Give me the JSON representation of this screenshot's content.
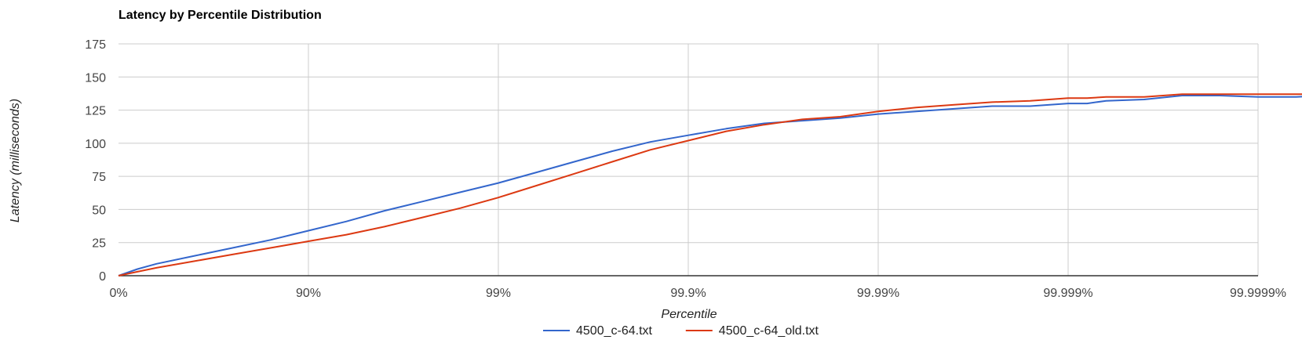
{
  "chart_data": {
    "type": "line",
    "title": "Latency by Percentile Distribution",
    "xlabel": "Percentile",
    "ylabel": "Latency (milliseconds)",
    "x_scale": "log10(1/(1-p))",
    "x_range": [
      0,
      6
    ],
    "ylim": [
      0,
      175
    ],
    "grid": true,
    "legend_position": "bottom",
    "x_ticks": [
      {
        "value": 0,
        "label": "0%"
      },
      {
        "value": 1,
        "label": "90%"
      },
      {
        "value": 2,
        "label": "99%"
      },
      {
        "value": 3,
        "label": "99.9%"
      },
      {
        "value": 4,
        "label": "99.99%"
      },
      {
        "value": 5,
        "label": "99.999%"
      },
      {
        "value": 6,
        "label": "99.9999%"
      }
    ],
    "y_ticks": [
      0,
      25,
      50,
      75,
      100,
      125,
      150,
      175
    ],
    "series": [
      {
        "name": "4500_c-64.txt",
        "color": "#3366cc",
        "points": [
          [
            0,
            0
          ],
          [
            0.1,
            5
          ],
          [
            0.2,
            9
          ],
          [
            0.4,
            15
          ],
          [
            0.6,
            21
          ],
          [
            0.8,
            27
          ],
          [
            1.0,
            34
          ],
          [
            1.2,
            41
          ],
          [
            1.4,
            49
          ],
          [
            1.6,
            56
          ],
          [
            1.8,
            63
          ],
          [
            2.0,
            70
          ],
          [
            2.2,
            78
          ],
          [
            2.4,
            86
          ],
          [
            2.6,
            94
          ],
          [
            2.8,
            101
          ],
          [
            3.0,
            106
          ],
          [
            3.2,
            111
          ],
          [
            3.4,
            115
          ],
          [
            3.6,
            117
          ],
          [
            3.8,
            119
          ],
          [
            4.0,
            122
          ],
          [
            4.2,
            124
          ],
          [
            4.4,
            126
          ],
          [
            4.6,
            128
          ],
          [
            4.8,
            128
          ],
          [
            5.0,
            130
          ],
          [
            5.1,
            130
          ],
          [
            5.2,
            132
          ],
          [
            5.4,
            133
          ],
          [
            5.6,
            136
          ],
          [
            5.8,
            136
          ],
          [
            6.0,
            135
          ],
          [
            6.2,
            135
          ],
          [
            6.4,
            136
          ],
          [
            6.6,
            140
          ]
        ]
      },
      {
        "name": "4500_c-64_old.txt",
        "color": "#dc3912",
        "points": [
          [
            0,
            0
          ],
          [
            0.1,
            3
          ],
          [
            0.2,
            6
          ],
          [
            0.4,
            11
          ],
          [
            0.6,
            16
          ],
          [
            0.8,
            21
          ],
          [
            1.0,
            26
          ],
          [
            1.2,
            31
          ],
          [
            1.4,
            37
          ],
          [
            1.6,
            44
          ],
          [
            1.8,
            51
          ],
          [
            2.0,
            59
          ],
          [
            2.2,
            68
          ],
          [
            2.4,
            77
          ],
          [
            2.6,
            86
          ],
          [
            2.8,
            95
          ],
          [
            3.0,
            102
          ],
          [
            3.2,
            109
          ],
          [
            3.4,
            114
          ],
          [
            3.6,
            118
          ],
          [
            3.8,
            120
          ],
          [
            4.0,
            124
          ],
          [
            4.2,
            127
          ],
          [
            4.4,
            129
          ],
          [
            4.6,
            131
          ],
          [
            4.8,
            132
          ],
          [
            5.0,
            134
          ],
          [
            5.1,
            134
          ],
          [
            5.2,
            135
          ],
          [
            5.4,
            135
          ],
          [
            5.6,
            137
          ],
          [
            5.8,
            137
          ],
          [
            6.0,
            137
          ],
          [
            6.2,
            137
          ],
          [
            6.4,
            137
          ],
          [
            6.6,
            137
          ]
        ]
      }
    ]
  }
}
